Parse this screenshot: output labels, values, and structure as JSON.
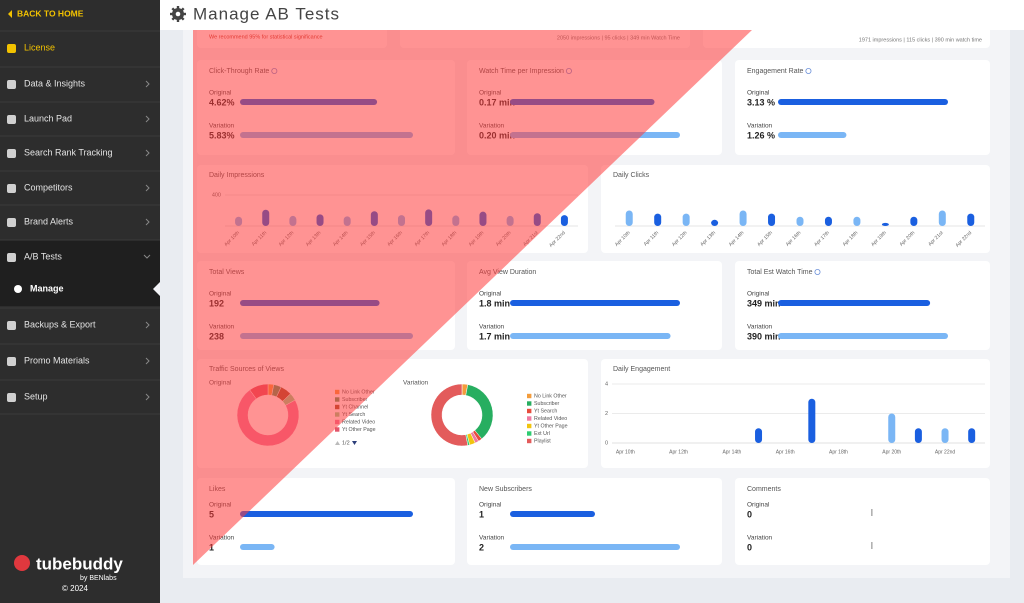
{
  "sidebar": {
    "back": "BACK TO HOME",
    "items": [
      {
        "label": "License",
        "highlight": true
      },
      {
        "label": "Data & Insights"
      },
      {
        "label": "Launch Pad"
      },
      {
        "label": "Search Rank Tracking"
      },
      {
        "label": "Competitors"
      },
      {
        "label": "Brand Alerts"
      },
      {
        "label": "A/B Tests",
        "expanded": true
      },
      {
        "label": "Backups & Export"
      },
      {
        "label": "Promo Materials"
      },
      {
        "label": "Setup"
      }
    ],
    "subitem": "Manage",
    "logo": "tubebuddy",
    "logo_sub": "by BENlabs",
    "copyright": "© 2024"
  },
  "header": {
    "title": "Manage AB Tests"
  },
  "summary": {
    "note": "We recommend 95% for statistical significance",
    "original_stats": "2050 impressions | 95 clicks | 349 min Watch Time",
    "variation_stats": "1971 impressions | 115 clicks | 390 min watch time"
  },
  "labels": {
    "original": "Original",
    "variation": "Variation"
  },
  "metrics": [
    {
      "title": "Click-Through Rate",
      "info": true,
      "original": {
        "value": 4.62,
        "label": "4.62%"
      },
      "variation": {
        "value": 5.83,
        "label": "5.83%"
      }
    },
    {
      "title": "Watch Time per Impression",
      "info": true,
      "original": {
        "value": 0.17,
        "label": "0.17 min"
      },
      "variation": {
        "value": 0.2,
        "label": "0.20 min"
      }
    },
    {
      "title": "Engagement Rate",
      "info": true,
      "original": {
        "value": 3.13,
        "label": "3.13 %"
      },
      "variation": {
        "value": 1.26,
        "label": "1.26 %"
      }
    },
    {
      "title": "Total Views",
      "info": false,
      "original": {
        "value": 192,
        "label": "192"
      },
      "variation": {
        "value": 238,
        "label": "238"
      }
    },
    {
      "title": "Avg View Duration",
      "info": false,
      "original": {
        "value": 1.8,
        "label": "1.8 min"
      },
      "variation": {
        "value": 1.7,
        "label": "1.7 min"
      }
    },
    {
      "title": "Total Est Watch Time",
      "info": true,
      "original": {
        "value": 349,
        "label": "349 min"
      },
      "variation": {
        "value": 390,
        "label": "390 min"
      }
    },
    {
      "title": "Likes",
      "info": false,
      "original": {
        "value": 5,
        "label": "5"
      },
      "variation": {
        "value": 1,
        "label": "1"
      }
    },
    {
      "title": "New Subscribers",
      "info": false,
      "original": {
        "value": 1,
        "label": "1"
      },
      "variation": {
        "value": 2,
        "label": "2"
      }
    },
    {
      "title": "Comments",
      "info": false,
      "original": {
        "value": 0,
        "label": "0"
      },
      "variation": {
        "value": 0,
        "label": "0"
      }
    }
  ],
  "traffic": {
    "title": "Traffic Sources of Views"
  },
  "chart_data": [
    {
      "type": "bar",
      "title": "Daily Impressions",
      "categories": [
        "Apr 10th",
        "Apr 11th",
        "Apr 12th",
        "Apr 13th",
        "Apr 14th",
        "Apr 15th",
        "Apr 16th",
        "Apr 17th",
        "Apr 18th",
        "Apr 19th",
        "Apr 20th",
        "Apr 21st",
        "Apr 22nd"
      ],
      "series": [
        {
          "color": "#1a5fe0",
          "values": [
            null,
            210,
            null,
            150,
            null,
            190,
            null,
            215,
            null,
            185,
            null,
            165,
            140
          ]
        },
        {
          "color": "#7ab6f5",
          "values": [
            120,
            null,
            130,
            null,
            125,
            null,
            140,
            null,
            135,
            null,
            130,
            null,
            null
          ]
        }
      ],
      "ylim": [
        0,
        400
      ],
      "yticks": [
        400
      ],
      "grid": true
    },
    {
      "type": "bar",
      "title": "Daily Clicks",
      "categories": [
        "Apr 10th",
        "Apr 11th",
        "Apr 12th",
        "Apr 13th",
        "Apr 14th",
        "Apr 15th",
        "Apr 16th",
        "Apr 17th",
        "Apr 18th",
        "Apr 19th",
        "Apr 20th",
        "Apr 21st",
        "Apr 22nd"
      ],
      "series": [
        {
          "color": "#1a5fe0",
          "values": [
            null,
            4,
            null,
            2,
            null,
            4,
            null,
            3,
            null,
            1,
            3,
            null,
            4
          ]
        },
        {
          "color": "#7ab6f5",
          "values": [
            5,
            null,
            4,
            null,
            5,
            null,
            3,
            null,
            3,
            null,
            null,
            5,
            null
          ]
        }
      ],
      "ylim": [
        0,
        10
      ],
      "grid": true
    },
    {
      "type": "bar",
      "title": "Daily Engagement",
      "categories": [
        "Apr 10th",
        null,
        "Apr 12th",
        null,
        "Apr 14th",
        null,
        "Apr 16th",
        null,
        "Apr 18th",
        null,
        "Apr 20th",
        null,
        "Apr 22nd",
        null
      ],
      "series": [
        {
          "color": "#1a5fe0",
          "values": [
            null,
            null,
            null,
            null,
            null,
            1,
            null,
            3,
            null,
            null,
            null,
            1,
            null,
            1
          ]
        },
        {
          "color": "#7ab6f5",
          "values": [
            null,
            null,
            null,
            null,
            null,
            null,
            null,
            null,
            null,
            null,
            2,
            null,
            1,
            null
          ]
        }
      ],
      "ylim": [
        0,
        4
      ],
      "yticks": [
        0,
        2,
        4
      ],
      "grid": true
    },
    {
      "type": "pie",
      "title": "Original",
      "categories": [
        "No Link Other",
        "Subscriber",
        "Yt Channel",
        "Yt Search",
        "Related Video",
        "Yt Other Page"
      ],
      "values": [
        3,
        4,
        6,
        4,
        73,
        10
      ],
      "colors": [
        "#f39c3c",
        "#5b9a5b",
        "#a0522d",
        "#8fd18f",
        "#f07aa0",
        "#e2556a"
      ],
      "legend_page": "1/2"
    },
    {
      "type": "pie",
      "title": "Variation",
      "categories": [
        "No Link Other",
        "Subscriber",
        "Yt Search",
        "Related Video",
        "Yt Other Page",
        "Ext Url",
        "Playlist"
      ],
      "values": [
        3,
        36,
        2,
        2,
        3,
        1,
        53
      ],
      "colors": [
        "#f39c3c",
        "#27ae60",
        "#e74c3c",
        "#f07aa0",
        "#f1c40f",
        "#2ecc71",
        "#e35b5b"
      ]
    }
  ]
}
